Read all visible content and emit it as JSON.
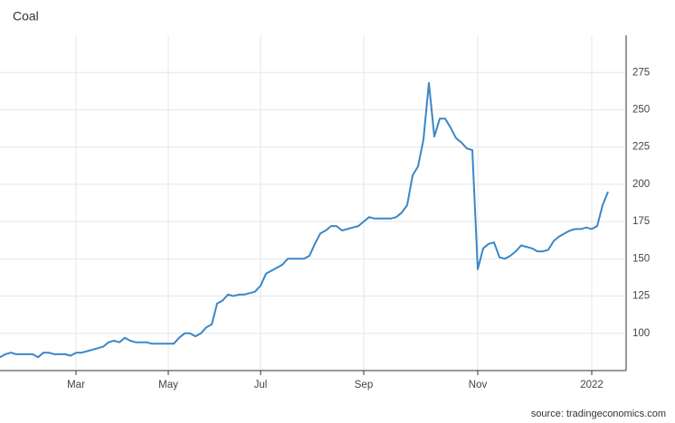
{
  "chart_data": {
    "type": "line",
    "title": "Coal",
    "source": "source: tradingeconomics.com",
    "categories": [
      null,
      null,
      null,
      null,
      null,
      null,
      null,
      null,
      null,
      null,
      null,
      null,
      null,
      null,
      "Mar",
      null,
      null,
      null,
      null,
      null,
      null,
      null,
      null,
      null,
      null,
      null,
      null,
      null,
      null,
      null,
      null,
      "May",
      null,
      null,
      null,
      null,
      null,
      null,
      null,
      null,
      null,
      null,
      null,
      null,
      null,
      null,
      null,
      null,
      "Jul",
      null,
      null,
      null,
      null,
      null,
      null,
      null,
      null,
      null,
      null,
      null,
      null,
      null,
      null,
      null,
      null,
      null,
      null,
      "Sep",
      null,
      null,
      null,
      null,
      null,
      null,
      null,
      null,
      null,
      null,
      null,
      null,
      null,
      null,
      null,
      null,
      null,
      null,
      null,
      null,
      "Nov",
      null,
      null,
      null,
      null,
      null,
      null,
      null,
      null,
      null,
      null,
      null,
      null,
      null,
      null,
      null,
      null,
      null,
      null,
      null,
      null,
      "2022",
      null,
      null,
      null
    ],
    "values": [
      84,
      86,
      87,
      86,
      86,
      86,
      86,
      84,
      87,
      87,
      86,
      86,
      86,
      85,
      87,
      87,
      88,
      89,
      90,
      91,
      94,
      95,
      94,
      97,
      95,
      94,
      94,
      94,
      93,
      93,
      93,
      93,
      93,
      97,
      100,
      100,
      98,
      100,
      104,
      106,
      120,
      122,
      126,
      125,
      126,
      126,
      127,
      128,
      132,
      140,
      142,
      144,
      146,
      150,
      150,
      150,
      150,
      152,
      160,
      167,
      169,
      172,
      172,
      169,
      170,
      171,
      172,
      175,
      178,
      177,
      177,
      177,
      177,
      178,
      181,
      186,
      206,
      212,
      230,
      268,
      232,
      244,
      244,
      238,
      231,
      228,
      224,
      223,
      143,
      157,
      160,
      161,
      151,
      150,
      152,
      155,
      159,
      158,
      157,
      155,
      155,
      156,
      162,
      165,
      167,
      169,
      170,
      170,
      171,
      170,
      172,
      186,
      195
    ],
    "color": "#3a87c8",
    "ylim": [
      75,
      300
    ],
    "yticks": [
      100,
      125,
      150,
      175,
      200,
      225,
      250,
      275
    ],
    "grid": true
  }
}
